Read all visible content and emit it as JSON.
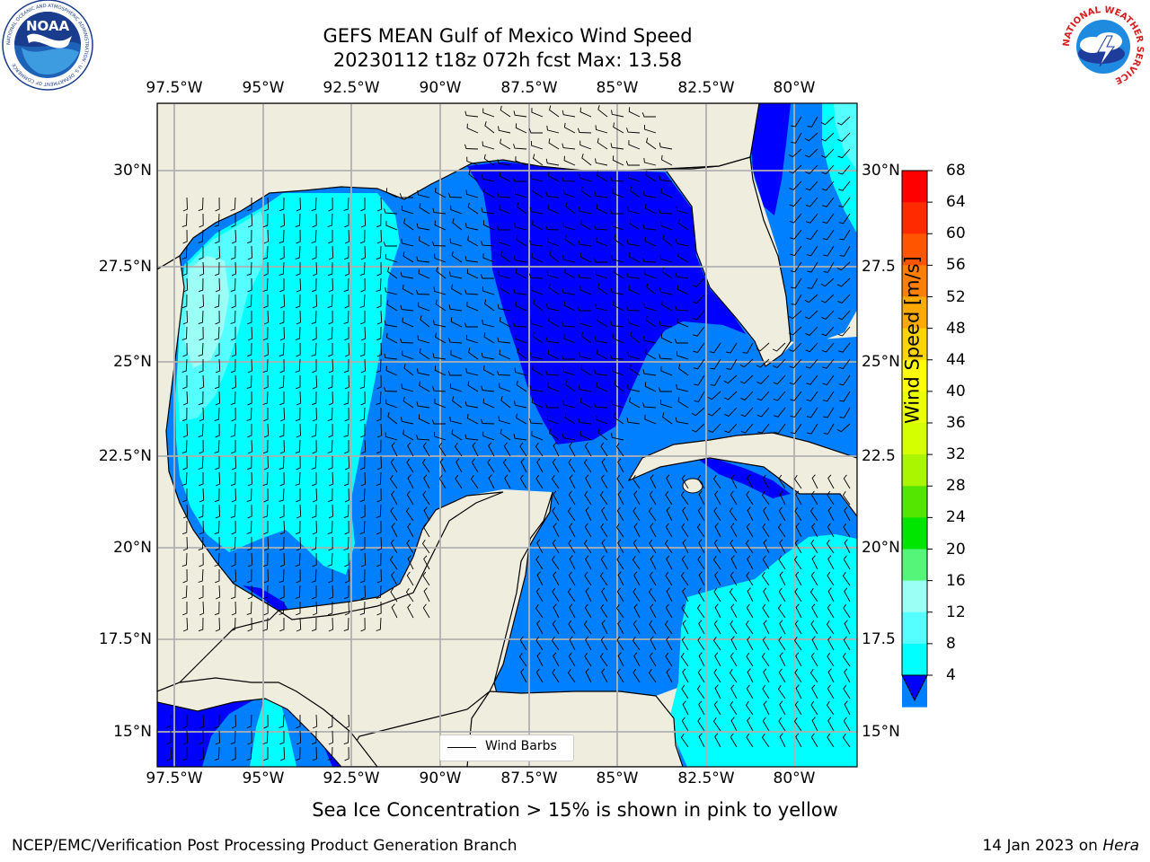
{
  "title": {
    "line1": "GEFS MEAN Gulf of Mexico Wind Speed",
    "line2": "20230112 t18z 072h fcst   Max: 13.58"
  },
  "lon_ticks": [
    "97.5°W",
    "95°W",
    "92.5°W",
    "90°W",
    "87.5°W",
    "85°W",
    "82.5°W",
    "80°W"
  ],
  "lat_ticks_left": [
    "30°N",
    "27.5°N",
    "25°N",
    "22.5°N",
    "20°N",
    "17.5°N",
    "15°N"
  ],
  "lat_ticks_right": [
    "30°N",
    "27.5",
    "25°N",
    "22.5",
    "20°N",
    "17.5",
    "15°N"
  ],
  "colorbar": {
    "title": "Wind Speed [m/s]",
    "ticks": [
      "68",
      "64",
      "60",
      "56",
      "52",
      "48",
      "44",
      "40",
      "36",
      "32",
      "28",
      "24",
      "20",
      "16",
      "12",
      "8",
      "4"
    ],
    "colors": [
      "#ff0000",
      "#ff2a00",
      "#ff5500",
      "#ff8000",
      "#ffaa00",
      "#ffd400",
      "#ffff00",
      "#eaff00",
      "#d4ff00",
      "#aaf500",
      "#55e600",
      "#00e600",
      "#55f57a",
      "#9cfff5",
      "#55ffff",
      "#00ffff",
      "#0080ff"
    ],
    "under_color": "#0000ff"
  },
  "legend": {
    "label": "Wind Barbs"
  },
  "note": "Sea Ice Concentration > 15% is shown in pink to yellow",
  "footer": {
    "left": "NCEP/EMC/Verification Post Processing Product Generation Branch",
    "date": "14 Jan 2023 on ",
    "machine": "Hera"
  },
  "logos": {
    "noaa": {
      "text": "NOAA",
      "ring_text": "NATIONAL OCEANIC AND ATMOSPHERIC ADMINISTRATION · U.S. DEPARTMENT OF COMMERCE"
    },
    "nws": {
      "ring_text": "NATIONAL WEATHER SERVICE"
    }
  },
  "colors": {
    "land": "#efedde",
    "grid": "#b0b0b0",
    "speed_4_8": "#0080ff",
    "speed_8_12": "#00ffff",
    "speed_12_16": "#55ffff",
    "speed_below_4": "#0000ff"
  }
}
